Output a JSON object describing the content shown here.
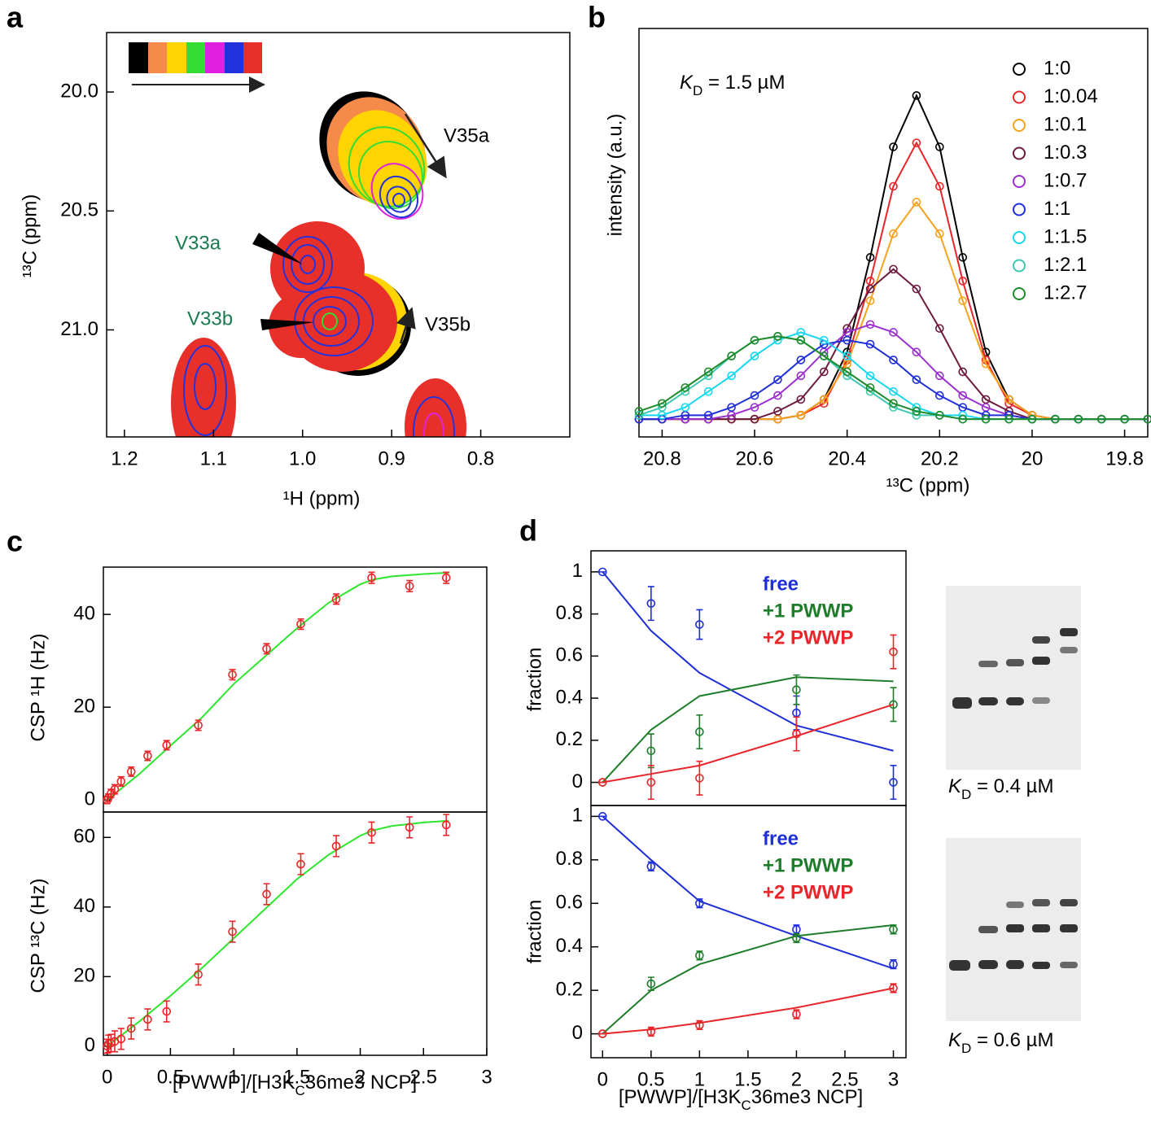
{
  "chart_data": [
    {
      "type": "contour",
      "panel": "a",
      "x_label": "¹H (ppm)",
      "y_label": "¹³C (ppm)",
      "xlim": [
        1.22,
        0.7
      ],
      "ylim": [
        21.45,
        19.75
      ],
      "xticks": [
        1.2,
        1.1,
        {
          "value": 1,
          "label": "1.0"
        },
        0.9,
        0.8
      ],
      "yticks": [
        {
          "value": 20,
          "label": "20.0"
        },
        20.5,
        {
          "value": 21,
          "label": "21.0"
        }
      ],
      "annotations": [
        "V35a",
        "V33a",
        "V33b",
        "V35b"
      ],
      "annotation_colors": [
        "#000000",
        "#1a7a50",
        "#1a7a50",
        "#000000"
      ]
    },
    {
      "type": "line",
      "panel": "b",
      "x_label": "¹³C (ppm)",
      "y_label": "intensity (a.u.)",
      "annotation": [
        "K",
        "D",
        " = 1.5  µM"
      ],
      "xlim": [
        20.85,
        19.75
      ],
      "ylim": [
        -0.035,
        1
      ],
      "xticks": [
        20.8,
        20.6,
        20.4,
        20.2,
        20,
        19.8
      ],
      "x": [
        20.85,
        20.8,
        20.75,
        20.7,
        20.65,
        20.6,
        20.55,
        20.5,
        20.45,
        20.4,
        20.35,
        20.3,
        20.25,
        20.2,
        20.15,
        20.1,
        20.05,
        20,
        19.95,
        19.9,
        19.85,
        19.8,
        19.75
      ],
      "series": [
        {
          "name": "1:0",
          "color": "#000000",
          "values": [
            0.01,
            0.01,
            0.01,
            0.01,
            0.01,
            0.01,
            0.01,
            0.02,
            0.06,
            0.18,
            0.42,
            0.7,
            0.83,
            0.7,
            0.42,
            0.18,
            0.06,
            0.02,
            0.01,
            0.01,
            0.01,
            0.01,
            0.01
          ]
        },
        {
          "name": "1:0.04",
          "color": "#e8262a",
          "values": [
            0.01,
            0.01,
            0.01,
            0.01,
            0.01,
            0.01,
            0.01,
            0.02,
            0.05,
            0.16,
            0.36,
            0.6,
            0.71,
            0.6,
            0.36,
            0.16,
            0.05,
            0.02,
            0.01,
            0.01,
            0.01,
            0.01,
            0.01
          ]
        },
        {
          "name": "1:0.1",
          "color": "#f7a21b",
          "values": [
            0.01,
            0.01,
            0.01,
            0.01,
            0.01,
            0.01,
            0.01,
            0.02,
            0.06,
            0.15,
            0.31,
            0.48,
            0.56,
            0.48,
            0.31,
            0.15,
            0.06,
            0.02,
            0.01,
            0.01,
            0.01,
            0.01,
            0.01
          ]
        },
        {
          "name": "1:0.3",
          "color": "#6d1a3f",
          "values": [
            0.01,
            0.01,
            0.01,
            0.01,
            0.01,
            0.01,
            0.03,
            0.06,
            0.13,
            0.24,
            0.34,
            0.39,
            0.34,
            0.24,
            0.13,
            0.06,
            0.03,
            0.01,
            0.01,
            0.01,
            0.01,
            0.01,
            0.01
          ]
        },
        {
          "name": "1:0.7",
          "color": "#9b30d0",
          "values": [
            0.01,
            0.01,
            0.01,
            0.01,
            0.02,
            0.04,
            0.07,
            0.12,
            0.18,
            0.23,
            0.25,
            0.23,
            0.18,
            0.12,
            0.07,
            0.04,
            0.02,
            0.01,
            0.01,
            0.01,
            0.01,
            0.01,
            0.01
          ]
        },
        {
          "name": "1:1",
          "color": "#1f2fd8",
          "values": [
            0.01,
            0.01,
            0.02,
            0.02,
            0.04,
            0.07,
            0.11,
            0.16,
            0.2,
            0.21,
            0.2,
            0.16,
            0.11,
            0.07,
            0.04,
            0.02,
            0.02,
            0.01,
            0.01,
            0.01,
            0.01,
            0.01,
            0.01
          ]
        },
        {
          "name": "1:1.5",
          "color": "#19d6f0",
          "values": [
            0.02,
            0.02,
            0.04,
            0.08,
            0.12,
            0.17,
            0.21,
            0.23,
            0.21,
            0.17,
            0.12,
            0.08,
            0.04,
            0.02,
            0.02,
            0.01,
            0.01,
            0.01,
            0.01,
            0.01,
            0.01,
            0.01,
            0.01
          ]
        },
        {
          "name": "1:2.1",
          "color": "#3cc9b0",
          "values": [
            0.02,
            0.04,
            0.08,
            0.12,
            0.17,
            0.21,
            0.22,
            0.21,
            0.17,
            0.12,
            0.08,
            0.04,
            0.02,
            0.02,
            0.01,
            0.01,
            0.01,
            0.01,
            0.01,
            0.01,
            0.01,
            0.01,
            0.01
          ]
        },
        {
          "name": "1:2.7",
          "color": "#1e8a2a",
          "values": [
            0.03,
            0.05,
            0.09,
            0.13,
            0.17,
            0.21,
            0.22,
            0.21,
            0.17,
            0.13,
            0.09,
            0.05,
            0.03,
            0.02,
            0.01,
            0.01,
            0.01,
            0.01,
            0.01,
            0.01,
            0.01,
            0.01,
            0.01
          ]
        }
      ]
    },
    {
      "type": "scatter",
      "panel": "c",
      "y_label": "CSP ¹H (Hz)",
      "xlim": [
        -0.03,
        3
      ],
      "ylim": [
        -2.6,
        50.2
      ],
      "yticks": [
        0,
        20,
        40
      ],
      "x": [
        0,
        0.01,
        0.03,
        0.06,
        0.11,
        0.19,
        0.32,
        0.47,
        0.72,
        0.99,
        1.26,
        1.53,
        1.81,
        2.09,
        2.39,
        2.68
      ],
      "series": [
        {
          "color": "#e8262a",
          "values": [
            0,
            0.5,
            1.4,
            2.3,
            4,
            6.1,
            9.5,
            11.8,
            16.1,
            27,
            32.6,
            37.9,
            43.3,
            47.9,
            46.1,
            47.9
          ],
          "errors": [
            0.8,
            0.8,
            0.9,
            1,
            1,
            1,
            1,
            1,
            1.1,
            1.1,
            1.1,
            1.1,
            1.1,
            1.2,
            1.2,
            1.2
          ]
        }
      ],
      "fit": {
        "color": "#2ee62e",
        "x": [
          0,
          0.25,
          0.5,
          0.75,
          1,
          1.25,
          1.5,
          1.75,
          2,
          2.1,
          2.25,
          2.5,
          2.7
        ],
        "values": [
          0,
          5.5,
          11.7,
          17.8,
          25,
          31,
          37,
          42.5,
          46.5,
          47.5,
          48.2,
          48.7,
          49
        ]
      }
    },
    {
      "type": "scatter",
      "y_label": "CSP ¹³C (Hz)",
      "x_label": [
        "[PWWP]/[H3K",
        "C",
        "36me3 NCP]"
      ],
      "xlim": [
        -0.03,
        3
      ],
      "ylim": [
        -2.6,
        67.3
      ],
      "yticks": [
        0,
        20,
        40,
        60
      ],
      "xticks": [
        0,
        0.5,
        1,
        1.5,
        2,
        2.5,
        3
      ],
      "x": [
        0,
        0.01,
        0.03,
        0.06,
        0.11,
        0.19,
        0.32,
        0.47,
        0.72,
        0.99,
        1.26,
        1.53,
        1.81,
        2.09,
        2.39,
        2.68
      ],
      "series": [
        {
          "color": "#e8262a",
          "values": [
            0,
            0.7,
            0.9,
            1.4,
            2.1,
            5.1,
            7.7,
            10,
            20.6,
            32.9,
            43.7,
            52.3,
            57.5,
            61.4,
            62.9,
            63.6
          ],
          "errors": [
            2,
            2.5,
            2.5,
            3,
            3,
            3,
            3,
            3,
            3,
            3,
            3,
            3,
            3,
            3,
            3,
            3
          ]
        }
      ],
      "fit": {
        "color": "#2ee62e",
        "x": [
          0,
          0.25,
          0.5,
          0.75,
          1,
          1.25,
          1.5,
          1.75,
          2,
          2.1,
          2.25,
          2.5,
          2.7
        ],
        "values": [
          0,
          7,
          14.5,
          22.5,
          31,
          39.5,
          48,
          55,
          60.5,
          62,
          63.3,
          64.3,
          64.8
        ]
      }
    },
    {
      "type": "scatter",
      "panel": "d",
      "y_label": "fraction",
      "gel_label": [
        "K",
        "D",
        " = 0.4  µM"
      ],
      "xlim": [
        -0.12,
        3.13
      ],
      "ylim": [
        -0.11,
        1.1
      ],
      "yticks": [
        0,
        0.2,
        0.4,
        0.6,
        0.8,
        1
      ],
      "x": [
        0,
        0.5,
        1,
        2,
        3
      ],
      "series": [
        {
          "name": "free",
          "color": "#1f2fd8",
          "values": [
            1,
            0.85,
            0.75,
            0.33,
            0
          ],
          "errors": [
            0,
            0.08,
            0.07,
            0.08,
            0.08
          ],
          "fit": [
            1,
            0.72,
            0.52,
            0.27,
            0.15
          ]
        },
        {
          "name": "+1 PWWP",
          "color": "#1e7d2a",
          "values": [
            0,
            0.15,
            0.24,
            0.44,
            0.37
          ],
          "errors": [
            0,
            0.08,
            0.08,
            0.07,
            0.08
          ],
          "fit": [
            0,
            0.25,
            0.41,
            0.5,
            0.48
          ]
        },
        {
          "name": "+2 PWWP",
          "color": "#e8262a",
          "values": [
            0,
            0,
            0.02,
            0.23,
            0.62
          ],
          "errors": [
            0,
            0.08,
            0.08,
            0.08,
            0.08
          ],
          "fit": [
            0,
            0.04,
            0.08,
            0.22,
            0.37
          ]
        }
      ]
    },
    {
      "type": "scatter",
      "y_label": "fraction",
      "x_label": [
        "[PWWP]/[H3K",
        "C",
        "36me3 NCP]"
      ],
      "gel_label": [
        "K",
        "D",
        " = 0.6  µM"
      ],
      "xlim": [
        -0.12,
        3.13
      ],
      "ylim": [
        -0.11,
        1.05
      ],
      "yticks": [
        0,
        0.2,
        0.4,
        0.6,
        0.8,
        1
      ],
      "xticks": [
        0,
        0.5,
        1,
        1.5,
        2,
        2.5,
        3
      ],
      "x": [
        0,
        0.5,
        1,
        2,
        3
      ],
      "series": [
        {
          "name": "free",
          "color": "#1f2fd8",
          "values": [
            1,
            0.77,
            0.6,
            0.48,
            0.32
          ],
          "errors": [
            0,
            0.02,
            0.02,
            0.02,
            0.02
          ],
          "fit": [
            1,
            0.8,
            0.61,
            0.45,
            0.3
          ]
        },
        {
          "name": "+1 PWWP",
          "color": "#1e7d2a",
          "values": [
            0,
            0.23,
            0.36,
            0.44,
            0.48
          ],
          "errors": [
            0,
            0.03,
            0.02,
            0.02,
            0.02
          ],
          "fit": [
            0,
            0.2,
            0.32,
            0.45,
            0.5
          ]
        },
        {
          "name": "+2 PWWP",
          "color": "#e8262a",
          "values": [
            0,
            0.01,
            0.04,
            0.09,
            0.21
          ],
          "errors": [
            0,
            0.02,
            0.02,
            0.02,
            0.02
          ],
          "fit": [
            0,
            0.02,
            0.05,
            0.12,
            0.21
          ]
        }
      ]
    }
  ]
}
